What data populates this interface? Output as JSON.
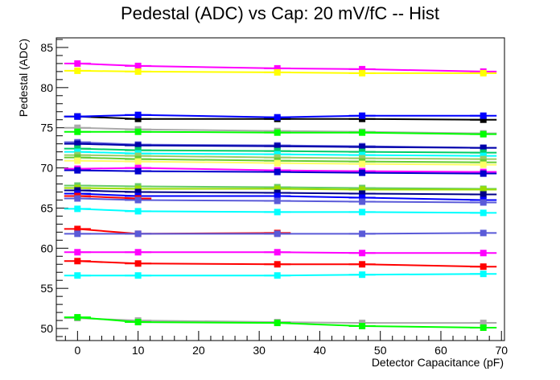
{
  "chart_data": {
    "type": "line",
    "title": "Pedestal (ADC) vs Cap: 20 mV/fC -- Hist",
    "xlabel": "Detector Capacitance (pF)",
    "ylabel": "Pedestal (ADC)",
    "xlim": [
      -3.5,
      70.5
    ],
    "ylim": [
      48.5,
      86.2
    ],
    "x_ticks": [
      0,
      10,
      20,
      30,
      40,
      50,
      60,
      70
    ],
    "y_ticks": [
      50,
      55,
      60,
      65,
      70,
      75,
      80,
      85
    ],
    "x": [
      0,
      10,
      33,
      47,
      67
    ],
    "grid": false,
    "legend": "none",
    "series": [
      {
        "color": "#ff00ff",
        "values": [
          83.0,
          82.7,
          82.4,
          82.3,
          82.0
        ]
      },
      {
        "color": "#ffff00",
        "values": [
          82.1,
          82.0,
          81.9,
          81.8,
          81.8
        ]
      },
      {
        "color": "#000000",
        "values": [
          76.4,
          76.1,
          76.1,
          76.1,
          76.0
        ]
      },
      {
        "color": "#0000ff",
        "values": [
          76.4,
          76.6,
          76.3,
          76.5,
          76.5
        ]
      },
      {
        "color": "#aaaaaa",
        "values": [
          75.0,
          74.8,
          74.6,
          74.5,
          74.3
        ]
      },
      {
        "color": "#00ff00",
        "values": [
          74.5,
          74.5,
          74.4,
          74.4,
          74.2
        ]
      },
      {
        "color": "#5a5ad8",
        "values": [
          73.2,
          72.9,
          72.8,
          72.7,
          72.5
        ]
      },
      {
        "color": "#0000aa",
        "values": [
          73.0,
          72.8,
          72.7,
          72.6,
          72.5
        ]
      },
      {
        "color": "#00cc66",
        "values": [
          72.4,
          72.2,
          72.1,
          72.0,
          71.9
        ]
      },
      {
        "color": "#00ffff",
        "values": [
          72.0,
          71.8,
          71.7,
          71.6,
          71.5
        ]
      },
      {
        "color": "#99cc66",
        "values": [
          71.6,
          71.5,
          71.3,
          71.2,
          71.1
        ]
      },
      {
        "color": "#66cc33",
        "values": [
          71.3,
          71.1,
          70.9,
          70.8,
          70.7
        ]
      },
      {
        "color": "#ffff66",
        "values": [
          70.9,
          70.8,
          70.6,
          70.5,
          70.4
        ]
      },
      {
        "color": "#ff00ff",
        "values": [
          69.9,
          70.0,
          69.7,
          69.6,
          69.5
        ]
      },
      {
        "color": "#0000cc",
        "values": [
          69.7,
          69.6,
          69.5,
          69.4,
          69.3
        ]
      },
      {
        "color": "#66cc66",
        "values": [
          67.8,
          67.7,
          67.6,
          67.5,
          67.4
        ]
      },
      {
        "color": "#99dd00",
        "values": [
          67.5,
          67.4,
          67.4,
          67.3,
          67.3
        ]
      },
      {
        "color": "#000088",
        "values": [
          67.2,
          67.0,
          66.9,
          66.8,
          66.7
        ]
      },
      {
        "color": "#0000ff",
        "values": [
          66.8,
          66.5,
          66.5,
          66.3,
          66.0
        ]
      },
      {
        "color": "#ff0000",
        "values": [
          66.5,
          66.2,
          null,
          null,
          null
        ]
      },
      {
        "color": "#5a5ad8",
        "values": [
          66.2,
          66.0,
          65.9,
          65.8,
          65.7
        ]
      },
      {
        "color": "#00ffff",
        "values": [
          64.9,
          64.6,
          64.5,
          64.5,
          64.4
        ]
      },
      {
        "color": "#ff0000",
        "values": [
          62.4,
          61.8,
          61.9,
          null,
          null
        ]
      },
      {
        "color": "#5a5ad8",
        "values": [
          61.8,
          61.8,
          61.8,
          61.8,
          61.9
        ]
      },
      {
        "color": "#ff00ff",
        "values": [
          59.5,
          59.5,
          59.5,
          59.4,
          59.4
        ]
      },
      {
        "color": "#ff0000",
        "values": [
          58.4,
          58.1,
          58.0,
          58.0,
          57.7
        ]
      },
      {
        "color": "#00ffff",
        "values": [
          56.6,
          56.6,
          56.6,
          56.7,
          56.8
        ]
      },
      {
        "color": "#aaaaaa",
        "values": [
          51.3,
          51.0,
          50.8,
          50.7,
          50.7
        ]
      },
      {
        "color": "#00ff00",
        "values": [
          51.4,
          50.8,
          50.7,
          50.3,
          50.1
        ]
      }
    ]
  }
}
